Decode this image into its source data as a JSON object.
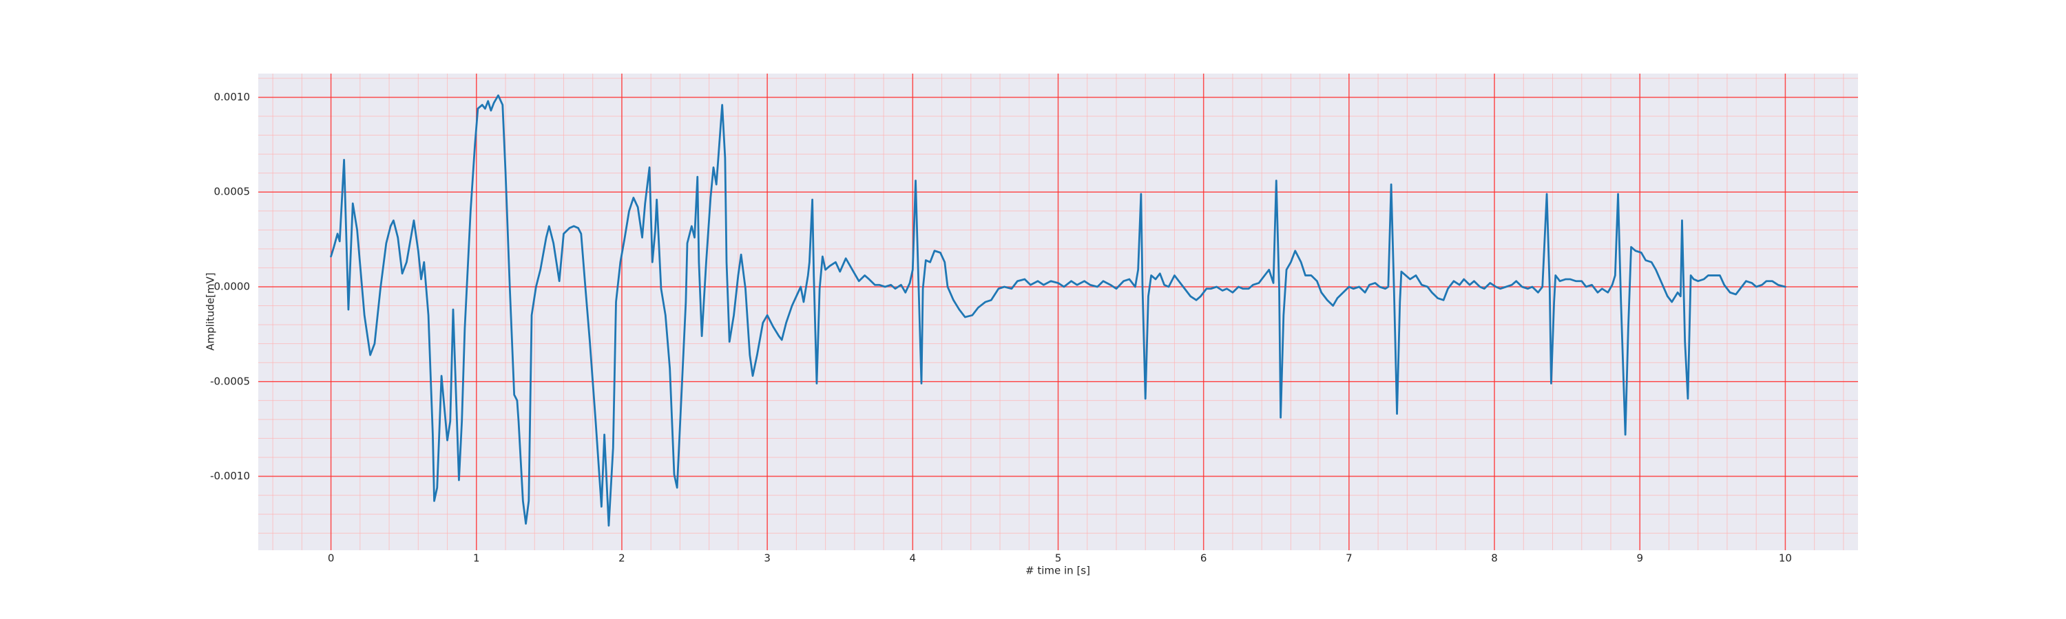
{
  "chart_data": {
    "type": "line",
    "xlabel": "# time in [s]",
    "ylabel": "Amplitude[mV]",
    "color": "#1f77b4",
    "grid": true,
    "minor_grid": true,
    "xlim": [
      -0.5,
      10.5
    ],
    "ylim": [
      -0.00139,
      0.001125
    ],
    "xticks": [
      0,
      1,
      2,
      3,
      4,
      5,
      6,
      7,
      8,
      9,
      10
    ],
    "yticks": [
      {
        "value": 0.001,
        "label": "0.0010"
      },
      {
        "value": 0.0005,
        "label": "0.0005"
      },
      {
        "value": 0,
        "label": "0.0000"
      },
      {
        "value": -0.0005,
        "label": "-0.0005"
      },
      {
        "value": -0.001,
        "label": "-0.0010"
      }
    ],
    "x": [
      0,
      0.02,
      0.045,
      0.06,
      0.09,
      0.12,
      0.15,
      0.18,
      0.23,
      0.27,
      0.3,
      0.34,
      0.38,
      0.41,
      0.43,
      0.46,
      0.49,
      0.52,
      0.57,
      0.6,
      0.62,
      0.64,
      0.67,
      0.7,
      0.71,
      0.73,
      0.76,
      0.78,
      0.8,
      0.82,
      0.84,
      0.86,
      0.88,
      0.9,
      0.92,
      0.96,
      0.99,
      1.01,
      1.04,
      1.06,
      1.08,
      1.1,
      1.12,
      1.15,
      1.18,
      1.2,
      1.23,
      1.26,
      1.28,
      1.29,
      1.32,
      1.34,
      1.36,
      1.38,
      1.41,
      1.44,
      1.48,
      1.5,
      1.53,
      1.57,
      1.6,
      1.64,
      1.67,
      1.7,
      1.72,
      1.75,
      1.78,
      1.82,
      1.86,
      1.88,
      1.91,
      1.94,
      1.96,
      1.99,
      2.02,
      2.05,
      2.08,
      2.11,
      2.14,
      2.16,
      2.19,
      2.21,
      2.23,
      2.24,
      2.27,
      2.3,
      2.33,
      2.36,
      2.38,
      2.41,
      2.44,
      2.45,
      2.48,
      2.5,
      2.52,
      2.53,
      2.55,
      2.58,
      2.61,
      2.63,
      2.65,
      2.67,
      2.69,
      2.71,
      2.72,
      2.74,
      2.77,
      2.8,
      2.82,
      2.85,
      2.88,
      2.9,
      2.93,
      2.97,
      3.0,
      3.04,
      3.08,
      3.1,
      3.13,
      3.17,
      3.2,
      3.23,
      3.25,
      3.28,
      3.29,
      3.31,
      3.32,
      3.34,
      3.36,
      3.38,
      3.4,
      3.43,
      3.47,
      3.5,
      3.54,
      3.57,
      3.6,
      3.63,
      3.67,
      3.7,
      3.74,
      3.77,
      3.81,
      3.85,
      3.88,
      3.92,
      3.95,
      3.98,
      4.0,
      4.02,
      4.04,
      4.06,
      4.07,
      4.09,
      4.12,
      4.15,
      4.19,
      4.22,
      4.24,
      4.28,
      4.32,
      4.36,
      4.41,
      4.45,
      4.5,
      4.54,
      4.59,
      4.63,
      4.68,
      4.72,
      4.77,
      4.81,
      4.86,
      4.9,
      4.95,
      5.0,
      5.04,
      5.09,
      5.13,
      5.18,
      5.22,
      5.27,
      5.31,
      5.36,
      5.4,
      5.45,
      5.49,
      5.53,
      5.55,
      5.57,
      5.58,
      5.6,
      5.62,
      5.64,
      5.67,
      5.7,
      5.73,
      5.76,
      5.8,
      5.84,
      5.87,
      5.91,
      5.95,
      5.98,
      6.02,
      6.05,
      6.09,
      6.13,
      6.16,
      6.2,
      6.24,
      6.27,
      6.31,
      6.34,
      6.38,
      6.42,
      6.45,
      6.48,
      6.5,
      6.52,
      6.53,
      6.55,
      6.57,
      6.6,
      6.63,
      6.67,
      6.7,
      6.74,
      6.78,
      6.81,
      6.85,
      6.89,
      6.92,
      6.96,
      7.0,
      7.03,
      7.07,
      7.11,
      7.14,
      7.18,
      7.21,
      7.25,
      7.27,
      7.29,
      7.31,
      7.33,
      7.35,
      7.36,
      7.39,
      7.42,
      7.46,
      7.5,
      7.54,
      7.57,
      7.61,
      7.65,
      7.68,
      7.72,
      7.76,
      7.79,
      7.83,
      7.86,
      7.9,
      7.93,
      7.97,
      8.01,
      8.04,
      8.08,
      8.12,
      8.15,
      8.19,
      8.23,
      8.26,
      8.3,
      8.33,
      8.36,
      8.38,
      8.39,
      8.41,
      8.42,
      8.45,
      8.49,
      8.52,
      8.56,
      8.6,
      8.63,
      8.67,
      8.71,
      8.74,
      8.78,
      8.81,
      8.83,
      8.85,
      8.87,
      8.9,
      8.92,
      8.94,
      8.97,
      9.01,
      9.04,
      9.08,
      9.11,
      9.15,
      9.19,
      9.22,
      9.26,
      9.28,
      9.29,
      9.31,
      9.33,
      9.35,
      9.37,
      9.4,
      9.44,
      9.47,
      9.51,
      9.55,
      9.58,
      9.62,
      9.66,
      9.7,
      9.73,
      9.77,
      9.8,
      9.84,
      9.87,
      9.91,
      9.95,
      10.0
    ],
    "values": [
      0.00016,
      0.00021,
      0.00028,
      0.00024,
      0.00067,
      -0.00012,
      0.00044,
      0.0003,
      -0.00015,
      -0.00036,
      -0.0003,
      -1e-05,
      0.00023,
      0.00032,
      0.00035,
      0.00026,
      7e-05,
      0.00013,
      0.00035,
      0.00019,
      4e-05,
      0.00013,
      -0.00015,
      -0.00078,
      -0.00113,
      -0.00106,
      -0.00047,
      -0.00064,
      -0.00081,
      -0.00071,
      -0.00012,
      -0.00057,
      -0.00102,
      -0.00071,
      -0.00022,
      0.0004,
      0.00075,
      0.00094,
      0.00096,
      0.00094,
      0.00098,
      0.00093,
      0.00097,
      0.00101,
      0.00096,
      0.00061,
      -1e-05,
      -0.00057,
      -0.0006,
      -0.00071,
      -0.00113,
      -0.00125,
      -0.00113,
      -0.00015,
      0,
      9e-05,
      0.00026,
      0.00032,
      0.00023,
      3e-05,
      0.00028,
      0.00031,
      0.00032,
      0.00031,
      0.00028,
      -1e-05,
      -0.00029,
      -0.00071,
      -0.00116,
      -0.00078,
      -0.00126,
      -0.00085,
      -8e-05,
      0.00013,
      0.00026,
      0.0004,
      0.00047,
      0.00042,
      0.00026,
      0.00044,
      0.00063,
      0.00013,
      0.0003,
      0.00046,
      -1e-05,
      -0.00015,
      -0.00043,
      -0.00099,
      -0.00106,
      -0.00057,
      -8e-05,
      0.00023,
      0.00032,
      0.00026,
      0.00058,
      0.00013,
      -0.00026,
      0.00013,
      0.00047,
      0.00063,
      0.00054,
      0.00075,
      0.00096,
      0.00068,
      0.00013,
      -0.00029,
      -0.00015,
      6e-05,
      0.00017,
      -1e-05,
      -0.00036,
      -0.00047,
      -0.00036,
      -0.00019,
      -0.00015,
      -0.00021,
      -0.00026,
      -0.00028,
      -0.00019,
      -0.0001,
      -5e-05,
      0,
      -8e-05,
      6e-05,
      0.00013,
      0.00046,
      6e-05,
      -0.00051,
      -1e-05,
      0.00016,
      9e-05,
      0.00011,
      0.00013,
      8e-05,
      0.00015,
      0.00011,
      7e-05,
      3e-05,
      6e-05,
      4e-05,
      1e-05,
      1e-05,
      0,
      1e-05,
      -1e-05,
      1e-05,
      -3e-05,
      2e-05,
      9e-05,
      0.00056,
      2e-05,
      -0.00051,
      -1e-05,
      0.00014,
      0.00013,
      0.00019,
      0.00018,
      0.00013,
      0,
      -7e-05,
      -0.00012,
      -0.00016,
      -0.00015,
      -0.00011,
      -8e-05,
      -7e-05,
      -1e-05,
      0,
      -1e-05,
      3e-05,
      4e-05,
      1e-05,
      3e-05,
      1e-05,
      3e-05,
      2e-05,
      0,
      3e-05,
      1e-05,
      3e-05,
      1e-05,
      0,
      3e-05,
      1e-05,
      -1e-05,
      3e-05,
      4e-05,
      0,
      9e-05,
      0.00049,
      0,
      -0.00059,
      -5e-05,
      6e-05,
      4e-05,
      7e-05,
      1e-05,
      0,
      6e-05,
      2e-05,
      -1e-05,
      -5e-05,
      -7e-05,
      -5e-05,
      -1e-05,
      -1e-05,
      0,
      -2e-05,
      -1e-05,
      -3e-05,
      0,
      -1e-05,
      -1e-05,
      1e-05,
      2e-05,
      6e-05,
      9e-05,
      2e-05,
      0.00056,
      -1e-05,
      -0.00069,
      -0.00015,
      9e-05,
      0.00013,
      0.00019,
      0.00013,
      6e-05,
      6e-05,
      3e-05,
      -3e-05,
      -7e-05,
      -0.0001,
      -6e-05,
      -3e-05,
      0,
      -1e-05,
      0,
      -3e-05,
      1e-05,
      2e-05,
      0,
      -1e-05,
      0,
      0.00054,
      -3e-05,
      -0.00067,
      -8e-05,
      8e-05,
      6e-05,
      4e-05,
      6e-05,
      1e-05,
      0,
      -3e-05,
      -6e-05,
      -7e-05,
      -1e-05,
      3e-05,
      1e-05,
      4e-05,
      1e-05,
      3e-05,
      0,
      -1e-05,
      2e-05,
      0,
      -1e-05,
      0,
      1e-05,
      3e-05,
      0,
      -1e-05,
      0,
      -3e-05,
      0,
      0.00049,
      -1e-05,
      -0.00051,
      -8e-05,
      6e-05,
      3e-05,
      4e-05,
      4e-05,
      3e-05,
      3e-05,
      0,
      1e-05,
      -3e-05,
      -1e-05,
      -3e-05,
      1e-05,
      6e-05,
      0.00049,
      -8e-05,
      -0.00078,
      -0.00022,
      0.00021,
      0.00019,
      0.00018,
      0.00014,
      0.00013,
      9e-05,
      2e-05,
      -5e-05,
      -8e-05,
      -3e-05,
      -5e-05,
      0.00035,
      -0.00029,
      -0.00059,
      6e-05,
      4e-05,
      3e-05,
      4e-05,
      6e-05,
      6e-05,
      6e-05,
      1e-05,
      -3e-05,
      -4e-05,
      0,
      3e-05,
      2e-05,
      0,
      1e-05,
      3e-05,
      3e-05,
      1e-05,
      0
    ]
  }
}
